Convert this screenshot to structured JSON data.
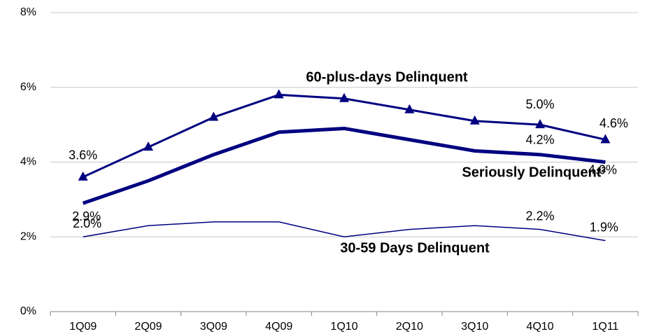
{
  "chart_data": {
    "type": "line",
    "categories": [
      "1Q09",
      "2Q09",
      "3Q09",
      "4Q09",
      "1Q10",
      "2Q10",
      "3Q10",
      "4Q10",
      "1Q11"
    ],
    "series": [
      {
        "name": "60-plus-days Delinquent",
        "color": "#000080",
        "marker": "triangle",
        "values": [
          3.6,
          4.4,
          5.2,
          5.8,
          5.7,
          5.4,
          5.1,
          5.0,
          4.6
        ],
        "value_labels": [
          "3.6%",
          null,
          null,
          null,
          null,
          null,
          null,
          "5.0%",
          "4.6%"
        ]
      },
      {
        "name": "Seriously Delinquent²",
        "color": "#000080",
        "values": [
          2.9,
          3.5,
          4.2,
          4.8,
          4.9,
          4.6,
          4.3,
          4.2,
          4.0
        ],
        "value_labels": [
          "2.9%",
          null,
          null,
          null,
          null,
          null,
          null,
          "4.2%",
          "4.0%"
        ]
      },
      {
        "name": "30-59 Days Delinquent",
        "color": "#000080",
        "values": [
          2.0,
          2.3,
          2.4,
          2.4,
          2.0,
          2.2,
          2.3,
          2.2,
          1.9
        ],
        "value_labels": [
          "2.0%",
          null,
          null,
          null,
          null,
          null,
          null,
          "2.2%",
          "1.9%"
        ]
      }
    ],
    "ylim": [
      0,
      8
    ],
    "yticks": [
      {
        "value": 0,
        "label": "0%"
      },
      {
        "value": 2,
        "label": "2%"
      },
      {
        "value": 4,
        "label": "4%"
      },
      {
        "value": 6,
        "label": "6%"
      },
      {
        "value": 8,
        "label": "8%"
      }
    ],
    "grid": true
  }
}
